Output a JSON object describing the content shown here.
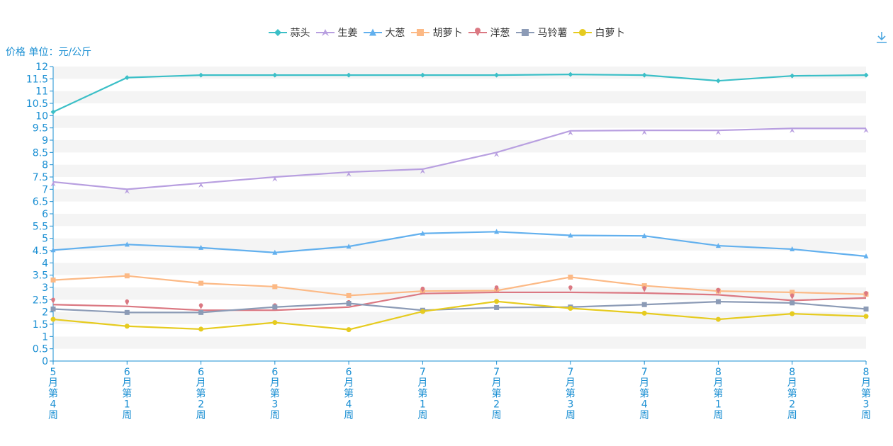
{
  "y_unit_label": "价格 单位：元/公斤",
  "chart_data": {
    "type": "line",
    "y_axis_label": "价格 单位：元/公斤",
    "ylim": [
      0,
      12
    ],
    "y_ticks": [
      "0",
      "0.5",
      "1",
      "1.5",
      "2",
      "2.5",
      "3",
      "3.5",
      "4",
      "4.5",
      "5",
      "5.5",
      "6",
      "6.5",
      "7",
      "7.5",
      "8",
      "8.5",
      "9",
      "9.5",
      "10",
      "10.5",
      "11",
      "11.5",
      "12"
    ],
    "categories": [
      "5月第4周",
      "6月第1周",
      "6月第2周",
      "6月第3周",
      "6月第4周",
      "7月第1周",
      "7月第2周",
      "7月第3周",
      "7月第4周",
      "8月第1周",
      "8月第2周",
      "8月第3周"
    ],
    "grid": "horizontal-bands",
    "legend_position": "top-center",
    "series": [
      {
        "name": "蒜头",
        "color": "#3bbfc7",
        "symbol": "diamond",
        "values": [
          10.15,
          11.55,
          11.65,
          11.65,
          11.65,
          11.65,
          11.65,
          11.68,
          11.65,
          11.42,
          11.62,
          11.65
        ]
      },
      {
        "name": "生姜",
        "color": "#b89fe0",
        "symbol": "arrow",
        "values": [
          7.3,
          7.0,
          7.25,
          7.5,
          7.7,
          7.82,
          8.5,
          9.38,
          9.4,
          9.4,
          9.48,
          9.48
        ]
      },
      {
        "name": "大葱",
        "color": "#62b0ee",
        "symbol": "triangle",
        "values": [
          4.52,
          4.75,
          4.62,
          4.42,
          4.67,
          5.2,
          5.27,
          5.12,
          5.1,
          4.7,
          4.56,
          4.27
        ]
      },
      {
        "name": "胡萝卜",
        "color": "#fcb985",
        "symbol": "square",
        "values": [
          3.3,
          3.47,
          3.17,
          3.03,
          2.67,
          2.85,
          2.87,
          3.42,
          3.07,
          2.85,
          2.8,
          2.72
        ]
      },
      {
        "name": "洋葱",
        "color": "#db7882",
        "symbol": "pin",
        "values": [
          2.3,
          2.23,
          2.07,
          2.07,
          2.2,
          2.75,
          2.8,
          2.8,
          2.77,
          2.7,
          2.47,
          2.57
        ]
      },
      {
        "name": "马铃薯",
        "color": "#8c9bb6",
        "symbol": "square",
        "values": [
          2.12,
          1.98,
          1.98,
          2.2,
          2.35,
          2.07,
          2.18,
          2.2,
          2.3,
          2.42,
          2.37,
          2.12
        ]
      },
      {
        "name": "白萝卜",
        "color": "#e6cb1f",
        "symbol": "circle",
        "values": [
          1.7,
          1.42,
          1.3,
          1.57,
          1.28,
          2.02,
          2.43,
          2.15,
          1.95,
          1.7,
          1.93,
          1.82
        ]
      }
    ]
  }
}
